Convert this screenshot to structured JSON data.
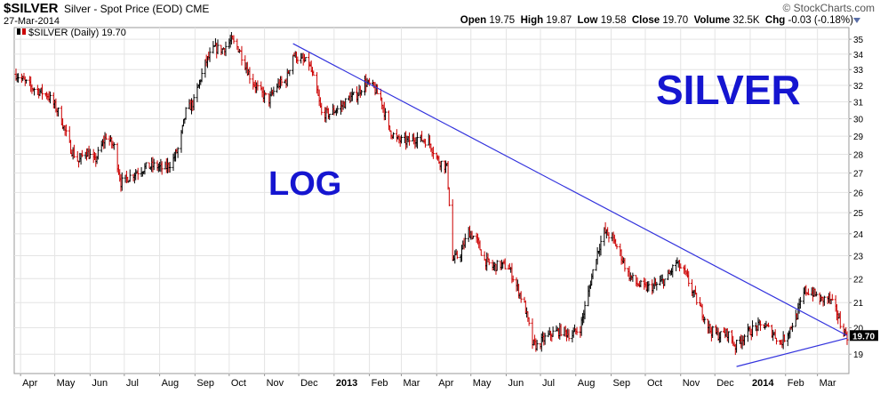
{
  "header": {
    "symbol": "$SILVER",
    "description": "Silver - Spot Price (EOD)",
    "exchange": "CME",
    "date": "27-Mar-2014",
    "brand": "© StockCharts.com",
    "stats": {
      "open_label": "Open",
      "open": "19.75",
      "high_label": "High",
      "high": "19.87",
      "low_label": "Low",
      "low": "19.58",
      "close_label": "Close",
      "close": "19.70",
      "volume_label": "Volume",
      "volume": "32.5K",
      "chg_label": "Chg",
      "chg": "-0.03 (-0.18%)"
    }
  },
  "legend": {
    "label": "$SILVER (Daily) 19.70"
  },
  "annotations": {
    "log": "LOG",
    "silver": "SILVER"
  },
  "colors": {
    "up": "#000000",
    "down": "#cc0000",
    "trendline": "#3333dd",
    "label_blue": "#1515d0",
    "grid": "#e4e4e4",
    "price_tag": "#000000"
  },
  "chart_data": {
    "type": "ohlc",
    "scale": "log",
    "ylim": [
      18.3,
      35.8
    ],
    "yticks": [
      19,
      20,
      21,
      22,
      23,
      24,
      25,
      26,
      27,
      28,
      29,
      30,
      31,
      32,
      33,
      34,
      35
    ],
    "grid": true,
    "last_price_label": "19.70",
    "x_period": [
      "2012-03-28",
      "2014-03-27"
    ],
    "x_labels": [
      {
        "label": "Apr",
        "date": "2012-04-01",
        "bold": false
      },
      {
        "label": "May",
        "date": "2012-05-01",
        "bold": false
      },
      {
        "label": "Jun",
        "date": "2012-06-01",
        "bold": false
      },
      {
        "label": "Jul",
        "date": "2012-07-01",
        "bold": false
      },
      {
        "label": "Aug",
        "date": "2012-08-01",
        "bold": false
      },
      {
        "label": "Sep",
        "date": "2012-09-01",
        "bold": false
      },
      {
        "label": "Oct",
        "date": "2012-10-01",
        "bold": false
      },
      {
        "label": "Nov",
        "date": "2012-11-01",
        "bold": false
      },
      {
        "label": "Dec",
        "date": "2012-12-01",
        "bold": false
      },
      {
        "label": "2013",
        "date": "2013-01-01",
        "bold": true
      },
      {
        "label": "Feb",
        "date": "2013-02-01",
        "bold": false
      },
      {
        "label": "Mar",
        "date": "2013-03-01",
        "bold": false
      },
      {
        "label": "Apr",
        "date": "2013-04-01",
        "bold": false
      },
      {
        "label": "May",
        "date": "2013-05-01",
        "bold": false
      },
      {
        "label": "Jun",
        "date": "2013-06-01",
        "bold": false
      },
      {
        "label": "Jul",
        "date": "2013-07-01",
        "bold": false
      },
      {
        "label": "Aug",
        "date": "2013-08-01",
        "bold": false
      },
      {
        "label": "Sep",
        "date": "2013-09-01",
        "bold": false
      },
      {
        "label": "Oct",
        "date": "2013-10-01",
        "bold": false
      },
      {
        "label": "Nov",
        "date": "2013-11-01",
        "bold": false
      },
      {
        "label": "Dec",
        "date": "2013-12-01",
        "bold": false
      },
      {
        "label": "2014",
        "date": "2014-01-01",
        "bold": true
      },
      {
        "label": "Feb",
        "date": "2014-02-01",
        "bold": false
      },
      {
        "label": "Mar",
        "date": "2014-03-01",
        "bold": false
      }
    ],
    "price_path": [
      [
        "2012-03-28",
        32.7
      ],
      [
        "2012-04-10",
        31.9
      ],
      [
        "2012-04-25",
        31.4
      ],
      [
        "2012-05-05",
        30.3
      ],
      [
        "2012-05-15",
        28.3
      ],
      [
        "2012-05-22",
        27.6
      ],
      [
        "2012-05-28",
        28.2
      ],
      [
        "2012-06-05",
        27.6
      ],
      [
        "2012-06-15",
        29.0
      ],
      [
        "2012-06-22",
        28.4
      ],
      [
        "2012-06-28",
        26.5
      ],
      [
        "2012-07-10",
        27.0
      ],
      [
        "2012-07-20",
        27.3
      ],
      [
        "2012-07-28",
        27.4
      ],
      [
        "2012-08-05",
        27.2
      ],
      [
        "2012-08-12",
        27.6
      ],
      [
        "2012-08-18",
        28.4
      ],
      [
        "2012-08-24",
        30.4
      ],
      [
        "2012-08-31",
        31.0
      ],
      [
        "2012-09-10",
        33.4
      ],
      [
        "2012-09-18",
        34.4
      ],
      [
        "2012-09-25",
        34.3
      ],
      [
        "2012-10-03",
        34.9
      ],
      [
        "2012-10-10",
        34.3
      ],
      [
        "2012-10-20",
        32.4
      ],
      [
        "2012-10-28",
        31.6
      ],
      [
        "2012-11-05",
        31.1
      ],
      [
        "2012-11-12",
        32.0
      ],
      [
        "2012-11-20",
        32.3
      ],
      [
        "2012-11-26",
        34.0
      ],
      [
        "2012-12-03",
        33.6
      ],
      [
        "2012-12-10",
        33.4
      ],
      [
        "2012-12-17",
        31.6
      ],
      [
        "2012-12-21",
        30.3
      ],
      [
        "2012-12-28",
        30.3
      ],
      [
        "2013-01-07",
        30.7
      ],
      [
        "2013-01-14",
        31.2
      ],
      [
        "2013-01-21",
        31.4
      ],
      [
        "2013-01-28",
        32.2
      ],
      [
        "2013-02-04",
        31.9
      ],
      [
        "2013-02-11",
        31.2
      ],
      [
        "2013-02-18",
        29.4
      ],
      [
        "2013-02-25",
        28.8
      ],
      [
        "2013-03-05",
        28.7
      ],
      [
        "2013-03-15",
        28.9
      ],
      [
        "2013-03-25",
        28.7
      ],
      [
        "2013-04-02",
        27.7
      ],
      [
        "2013-04-10",
        27.3
      ],
      [
        "2013-04-15",
        22.8
      ],
      [
        "2013-04-22",
        23.1
      ],
      [
        "2013-04-29",
        24.1
      ],
      [
        "2013-05-06",
        23.7
      ],
      [
        "2013-05-13",
        22.8
      ],
      [
        "2013-05-20",
        22.5
      ],
      [
        "2013-05-27",
        22.6
      ],
      [
        "2013-06-03",
        22.5
      ],
      [
        "2013-06-10",
        21.7
      ],
      [
        "2013-06-17",
        20.9
      ],
      [
        "2013-06-24",
        19.4
      ],
      [
        "2013-06-28",
        19.3
      ],
      [
        "2013-07-05",
        19.6
      ],
      [
        "2013-07-12",
        19.8
      ],
      [
        "2013-07-20",
        19.9
      ],
      [
        "2013-07-28",
        19.7
      ],
      [
        "2013-08-05",
        20.0
      ],
      [
        "2013-08-12",
        21.4
      ],
      [
        "2013-08-19",
        23.0
      ],
      [
        "2013-08-26",
        24.1
      ],
      [
        "2013-09-02",
        23.8
      ],
      [
        "2013-09-09",
        23.1
      ],
      [
        "2013-09-16",
        22.2
      ],
      [
        "2013-09-23",
        21.8
      ],
      [
        "2013-10-01",
        21.6
      ],
      [
        "2013-10-10",
        21.7
      ],
      [
        "2013-10-20",
        22.0
      ],
      [
        "2013-10-28",
        22.7
      ],
      [
        "2013-11-05",
        22.2
      ],
      [
        "2013-11-12",
        21.4
      ],
      [
        "2013-11-20",
        20.6
      ],
      [
        "2013-11-27",
        19.9
      ],
      [
        "2013-12-05",
        19.7
      ],
      [
        "2013-12-12",
        19.8
      ],
      [
        "2013-12-19",
        19.3
      ],
      [
        "2013-12-27",
        19.7
      ],
      [
        "2014-01-05",
        20.0
      ],
      [
        "2014-01-13",
        20.1
      ],
      [
        "2014-01-21",
        19.8
      ],
      [
        "2014-01-28",
        19.4
      ],
      [
        "2014-02-04",
        19.9
      ],
      [
        "2014-02-11",
        20.5
      ],
      [
        "2014-02-18",
        21.5
      ],
      [
        "2014-02-25",
        21.4
      ],
      [
        "2014-03-04",
        21.1
      ],
      [
        "2014-03-11",
        21.2
      ],
      [
        "2014-03-18",
        20.6
      ],
      [
        "2014-03-22",
        20.0
      ],
      [
        "2014-03-27",
        19.7
      ]
    ],
    "trendlines": [
      {
        "name": "resistance",
        "start": [
          "2012-11-26",
          34.7
        ],
        "end": [
          "2014-03-27",
          19.7
        ]
      },
      {
        "name": "support",
        "start": [
          "2013-12-20",
          18.55
        ],
        "end": [
          "2014-03-27",
          19.6
        ]
      }
    ]
  }
}
